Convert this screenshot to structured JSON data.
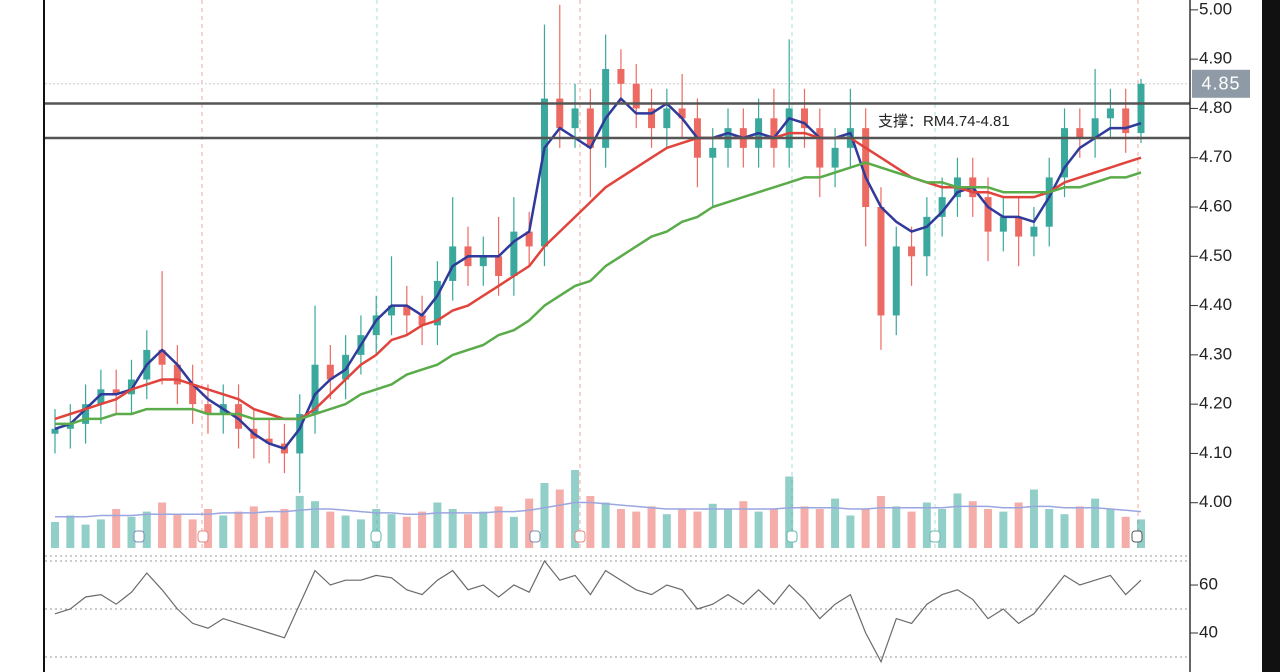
{
  "chart_data": {
    "type": "candlestick",
    "up_color": "#3aa89c",
    "down_color": "#ec6a62",
    "ylim": [
      3.9,
      5.02
    ],
    "yticks": [
      {
        "value": 5,
        "label": "5.00"
      },
      {
        "value": 4.9,
        "label": "4.90"
      },
      {
        "value": 4.8,
        "label": "4.80"
      },
      {
        "value": 4.7,
        "label": "4.70"
      },
      {
        "value": 4.6,
        "label": "4.60"
      },
      {
        "value": 4.5,
        "label": "4.50"
      },
      {
        "value": 4.4,
        "label": "4.40"
      },
      {
        "value": 4.3,
        "label": "4.30"
      },
      {
        "value": 4.2,
        "label": "4.20"
      },
      {
        "value": 4.1,
        "label": "4.10"
      },
      {
        "value": 4,
        "label": "4.00"
      }
    ],
    "last_price": 4.85,
    "support_lines": [
      4.81,
      4.74
    ],
    "annotation": "支撑：RM4.74-4.81",
    "open": [
      4.14,
      4.15,
      4.16,
      4.2,
      4.23,
      4.22,
      4.25,
      4.31,
      4.28,
      4.24,
      4.2,
      4.18,
      4.2,
      4.15,
      4.13,
      4.12,
      4.1,
      4.18,
      4.28,
      4.25,
      4.3,
      4.34,
      4.38,
      4.4,
      4.38,
      4.36,
      4.45,
      4.52,
      4.48,
      4.5,
      4.46,
      4.55,
      4.52,
      4.82,
      4.76,
      4.8,
      4.72,
      4.88,
      4.85,
      4.8,
      4.76,
      4.8,
      4.78,
      4.7,
      4.72,
      4.76,
      4.72,
      4.78,
      4.72,
      4.8,
      4.76,
      4.68,
      4.72,
      4.76,
      4.6,
      4.38,
      4.52,
      4.5,
      4.58,
      4.62,
      4.66,
      4.62,
      4.55,
      4.58,
      4.54,
      4.56,
      4.66,
      4.76,
      4.74,
      4.78,
      4.8,
      4.75
    ],
    "high": [
      4.19,
      4.2,
      4.24,
      4.27,
      4.27,
      4.29,
      4.35,
      4.47,
      4.32,
      4.28,
      4.24,
      4.24,
      4.24,
      4.19,
      4.17,
      4.16,
      4.22,
      4.4,
      4.32,
      4.34,
      4.38,
      4.42,
      4.5,
      4.44,
      4.42,
      4.49,
      4.62,
      4.56,
      4.54,
      4.58,
      4.62,
      4.59,
      4.97,
      5.01,
      4.85,
      4.84,
      4.95,
      4.92,
      4.89,
      4.84,
      4.84,
      4.87,
      4.82,
      4.76,
      4.8,
      4.8,
      4.82,
      4.84,
      4.94,
      4.84,
      4.8,
      4.76,
      4.84,
      4.8,
      4.64,
      4.56,
      4.56,
      4.62,
      4.66,
      4.7,
      4.7,
      4.66,
      4.62,
      4.62,
      4.6,
      4.7,
      4.8,
      4.8,
      4.88,
      4.84,
      4.84,
      4.86
    ],
    "low": [
      4.1,
      4.11,
      4.12,
      4.16,
      4.18,
      4.18,
      4.21,
      4.24,
      4.2,
      4.16,
      4.14,
      4.14,
      4.11,
      4.09,
      4.08,
      4.06,
      4.02,
      4.14,
      4.21,
      4.21,
      4.26,
      4.3,
      4.34,
      4.34,
      4.32,
      4.32,
      4.41,
      4.44,
      4.44,
      4.42,
      4.42,
      4.48,
      4.48,
      4.72,
      4.72,
      4.62,
      4.68,
      4.81,
      4.76,
      4.72,
      4.72,
      4.74,
      4.64,
      4.6,
      4.68,
      4.68,
      4.68,
      4.68,
      4.68,
      4.72,
      4.62,
      4.64,
      4.68,
      4.52,
      4.31,
      4.34,
      4.44,
      4.46,
      4.54,
      4.58,
      4.58,
      4.49,
      4.51,
      4.48,
      4.5,
      4.52,
      4.62,
      4.7,
      4.7,
      4.74,
      4.71,
      4.73
    ],
    "close": [
      4.15,
      4.16,
      4.2,
      4.23,
      4.22,
      4.25,
      4.31,
      4.28,
      4.24,
      4.2,
      4.18,
      4.2,
      4.15,
      4.13,
      4.12,
      4.1,
      4.18,
      4.28,
      4.25,
      4.3,
      4.34,
      4.38,
      4.4,
      4.38,
      4.36,
      4.45,
      4.52,
      4.48,
      4.5,
      4.46,
      4.55,
      4.52,
      4.82,
      4.76,
      4.8,
      4.72,
      4.88,
      4.85,
      4.8,
      4.76,
      4.8,
      4.78,
      4.7,
      4.72,
      4.76,
      4.72,
      4.78,
      4.72,
      4.8,
      4.76,
      4.68,
      4.72,
      4.76,
      4.6,
      4.38,
      4.52,
      4.5,
      4.58,
      4.62,
      4.66,
      4.62,
      4.55,
      4.58,
      4.54,
      4.56,
      4.66,
      4.76,
      4.74,
      4.78,
      4.8,
      4.75,
      4.85
    ],
    "moving_averages": [
      {
        "color": "#2f3a9a",
        "values": [
          4.15,
          4.16,
          4.19,
          4.22,
          4.22,
          4.23,
          4.28,
          4.31,
          4.28,
          4.24,
          4.21,
          4.19,
          4.17,
          4.14,
          4.12,
          4.11,
          4.15,
          4.22,
          4.25,
          4.27,
          4.32,
          4.37,
          4.4,
          4.4,
          4.38,
          4.42,
          4.48,
          4.5,
          4.5,
          4.5,
          4.53,
          4.55,
          4.72,
          4.76,
          4.74,
          4.72,
          4.78,
          4.82,
          4.79,
          4.79,
          4.81,
          4.78,
          4.74,
          4.74,
          4.75,
          4.74,
          4.75,
          4.74,
          4.78,
          4.77,
          4.74,
          4.74,
          4.75,
          4.66,
          4.6,
          4.57,
          4.55,
          4.56,
          4.59,
          4.63,
          4.64,
          4.6,
          4.58,
          4.58,
          4.57,
          4.62,
          4.68,
          4.72,
          4.74,
          4.76,
          4.76,
          4.77
        ]
      },
      {
        "color": "#e0443c",
        "values": [
          4.17,
          4.18,
          4.19,
          4.2,
          4.21,
          4.23,
          4.24,
          4.25,
          4.25,
          4.24,
          4.23,
          4.22,
          4.21,
          4.19,
          4.18,
          4.17,
          4.17,
          4.19,
          4.22,
          4.25,
          4.28,
          4.3,
          4.33,
          4.34,
          4.36,
          4.37,
          4.39,
          4.4,
          4.42,
          4.44,
          4.46,
          4.48,
          4.52,
          4.55,
          4.58,
          4.61,
          4.64,
          4.66,
          4.68,
          4.7,
          4.72,
          4.73,
          4.74,
          4.74,
          4.74,
          4.74,
          4.74,
          4.74,
          4.75,
          4.75,
          4.74,
          4.74,
          4.74,
          4.72,
          4.7,
          4.68,
          4.66,
          4.65,
          4.64,
          4.64,
          4.63,
          4.63,
          4.62,
          4.62,
          4.62,
          4.63,
          4.65,
          4.66,
          4.67,
          4.68,
          4.69,
          4.7
        ]
      },
      {
        "color": "#5aab4a",
        "values": [
          4.16,
          4.16,
          4.17,
          4.17,
          4.18,
          4.18,
          4.19,
          4.19,
          4.19,
          4.19,
          4.18,
          4.18,
          4.18,
          4.17,
          4.17,
          4.17,
          4.17,
          4.18,
          4.19,
          4.2,
          4.22,
          4.23,
          4.24,
          4.26,
          4.27,
          4.28,
          4.3,
          4.31,
          4.32,
          4.34,
          4.35,
          4.37,
          4.4,
          4.42,
          4.44,
          4.45,
          4.48,
          4.5,
          4.52,
          4.54,
          4.55,
          4.57,
          4.58,
          4.6,
          4.61,
          4.62,
          4.63,
          4.64,
          4.65,
          4.66,
          4.66,
          4.67,
          4.68,
          4.69,
          4.68,
          4.67,
          4.66,
          4.65,
          4.65,
          4.64,
          4.64,
          4.64,
          4.63,
          4.63,
          4.63,
          4.63,
          4.64,
          4.64,
          4.65,
          4.66,
          4.66,
          4.67
        ]
      }
    ],
    "volume": {
      "ylim": [
        0,
        100
      ],
      "ma_color": "#9aa6e0",
      "values": [
        20,
        25,
        18,
        22,
        30,
        24,
        28,
        35,
        26,
        22,
        30,
        25,
        28,
        32,
        24,
        30,
        40,
        36,
        28,
        25,
        22,
        30,
        26,
        24,
        28,
        35,
        30,
        26,
        28,
        32,
        24,
        38,
        50,
        45,
        60,
        40,
        35,
        30,
        28,
        32,
        26,
        30,
        28,
        34,
        30,
        36,
        28,
        30,
        55,
        32,
        30,
        38,
        25,
        30,
        40,
        32,
        28,
        35,
        30,
        42,
        36,
        30,
        28,
        35,
        45,
        30,
        26,
        32,
        38,
        30,
        24,
        22
      ],
      "ma_values": [
        24,
        24,
        24,
        25,
        25,
        25,
        26,
        26,
        26,
        26,
        26,
        27,
        27,
        27,
        28,
        28,
        29,
        30,
        30,
        29,
        28,
        27,
        27,
        26,
        26,
        27,
        27,
        27,
        27,
        28,
        28,
        29,
        31,
        33,
        35,
        35,
        34,
        33,
        32,
        31,
        30,
        30,
        30,
        30,
        30,
        30,
        30,
        30,
        31,
        31,
        31,
        31,
        30,
        30,
        31,
        31,
        31,
        31,
        31,
        32,
        32,
        32,
        31,
        31,
        32,
        32,
        31,
        31,
        31,
        30,
        29,
        28
      ]
    },
    "rsi": {
      "color": "#6a6a6a",
      "ylim": [
        23.75,
        72.1
      ],
      "yticks": [
        60,
        40
      ],
      "levels": [
        70,
        50,
        30
      ],
      "values": [
        48,
        50,
        55,
        56,
        52,
        57,
        65,
        58,
        50,
        44,
        42,
        46,
        44,
        42,
        40,
        38,
        52,
        66,
        60,
        62,
        62,
        64,
        63,
        58,
        56,
        62,
        66,
        58,
        60,
        55,
        60,
        57,
        70,
        62,
        64,
        56,
        66,
        62,
        58,
        56,
        60,
        58,
        50,
        52,
        56,
        52,
        58,
        52,
        60,
        54,
        46,
        52,
        56,
        40,
        28,
        46,
        44,
        52,
        56,
        58,
        54,
        46,
        50,
        44,
        48,
        56,
        64,
        60,
        62,
        64,
        56,
        62
      ]
    }
  }
}
